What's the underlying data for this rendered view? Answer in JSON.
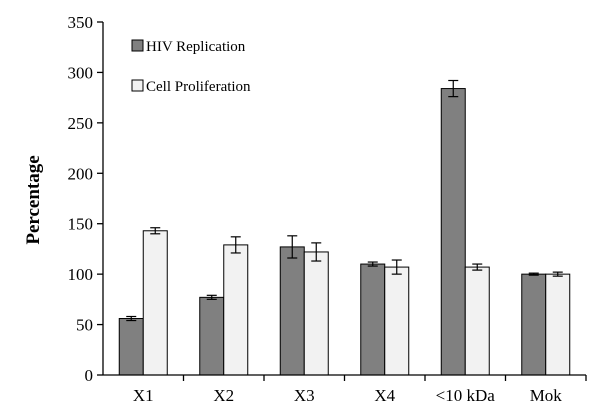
{
  "chart_data": {
    "type": "bar",
    "title": "",
    "xlabel": "",
    "ylabel": "Percentage",
    "ylim": [
      0,
      350
    ],
    "yticks": [
      0,
      50,
      100,
      150,
      200,
      250,
      300,
      350
    ],
    "grid": false,
    "legend_position": "top-left",
    "categories": [
      "X1",
      "X2",
      "X3",
      "X4",
      "<10 kDa",
      "Mok"
    ],
    "series": [
      {
        "name": "HIV Replication",
        "color": "#808080",
        "values": [
          56,
          77,
          127,
          110,
          284,
          100
        ],
        "errors": [
          2,
          2,
          11,
          2,
          8,
          1
        ]
      },
      {
        "name": "Cell Proliferation",
        "color": "#f2f2f2",
        "values": [
          143,
          129,
          122,
          107,
          107,
          100
        ],
        "errors": [
          3,
          8,
          9,
          7,
          3,
          2
        ]
      }
    ]
  }
}
